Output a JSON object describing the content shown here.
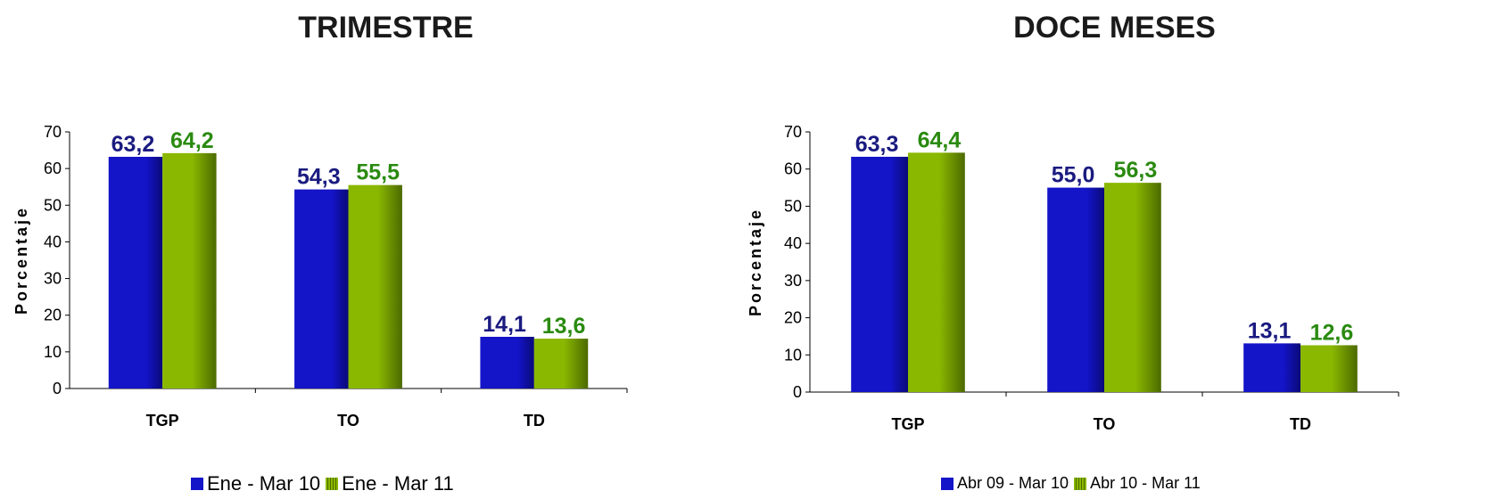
{
  "colors": {
    "series1": "#1414c8",
    "series1_dark": "#0a0a78",
    "series2": "#8ab800",
    "series2_dark": "#4c6a00",
    "label1": "#1a1a80",
    "label2": "#2a8a10"
  },
  "chart_data": [
    {
      "type": "bar",
      "title": "TRIMESTRE",
      "ylabel": "Porcentaje",
      "xlabel": "",
      "ylim": [
        0,
        70
      ],
      "yticks": [
        0,
        10,
        20,
        30,
        40,
        50,
        60,
        70
      ],
      "categories": [
        "TGP",
        "TO",
        "TD"
      ],
      "series": [
        {
          "name": "Ene - Mar 10",
          "values": [
            63.2,
            54.3,
            14.1
          ],
          "labels": [
            "63,2",
            "54,3",
            "14,1"
          ]
        },
        {
          "name": "Ene - Mar 11",
          "values": [
            64.2,
            55.5,
            13.6
          ],
          "labels": [
            "64,2",
            "55,5",
            "13,6"
          ]
        }
      ],
      "grid": false,
      "legend": "bottom"
    },
    {
      "type": "bar",
      "title": "DOCE MESES",
      "ylabel": "Porcentaje",
      "xlabel": "",
      "ylim": [
        0,
        70
      ],
      "yticks": [
        0,
        10,
        20,
        30,
        40,
        50,
        60,
        70
      ],
      "categories": [
        "TGP",
        "TO",
        "TD"
      ],
      "series": [
        {
          "name": "Abr 09 - Mar 10",
          "values": [
            63.3,
            55.0,
            13.1
          ],
          "labels": [
            "63,3",
            "55,0",
            "13,1"
          ]
        },
        {
          "name": "Abr 10 - Mar 11",
          "values": [
            64.4,
            56.3,
            12.6
          ],
          "labels": [
            "64,4",
            "56,3",
            "12,6"
          ]
        }
      ],
      "grid": false,
      "legend": "bottom"
    }
  ]
}
